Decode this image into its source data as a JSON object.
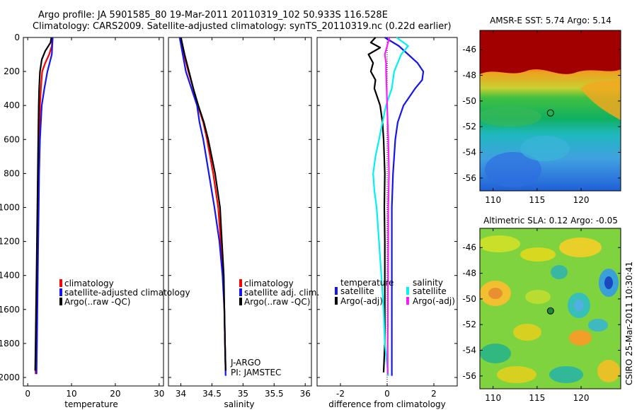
{
  "header": {
    "line1": "Argo profile: JA 5901585_80 19-Mar-2011 20110319_102 50.933S 116.528E",
    "line2": "Climatology: CARS2009. Satellite-adjusted climatology: synTS_20110319.nc (0.22d earlier)"
  },
  "side_label": "CSIRO 25-Mar-2011 10:30:41",
  "colors": {
    "red": "#ff0000",
    "blue": "#1515f0",
    "black": "#000000",
    "cyan": "#00f2f2",
    "magenta": "#ff19ff"
  },
  "chart_data": [
    {
      "id": "temperature",
      "type": "line",
      "xlabel": "temperature",
      "ylabel": "",
      "xlim": [
        -1,
        31
      ],
      "ylim": [
        0,
        2050
      ],
      "y_reversed": true,
      "xticks": [
        0,
        10,
        20,
        30
      ],
      "xtick_labels": [
        "0",
        "10",
        "20",
        "30"
      ],
      "yticks": [
        0,
        200,
        400,
        600,
        800,
        1000,
        1200,
        1400,
        1600,
        1800,
        2000
      ],
      "ytick_labels": [
        "0",
        "200",
        "400",
        "600",
        "800",
        "1000",
        "1200",
        "1400",
        "1600",
        "1800",
        "2000"
      ],
      "legend": [
        "climatology",
        "satellite-adjusted climatology",
        "Argo(..raw -QC)"
      ],
      "series": [
        {
          "name": "climatology",
          "color": "red",
          "depth": [
            0,
            50,
            100,
            150,
            200,
            300,
            400,
            600,
            800,
            1000,
            1200,
            1400,
            1600,
            1800,
            1980
          ],
          "values": [
            5.6,
            5.5,
            4.9,
            4.0,
            3.3,
            3.0,
            2.8,
            2.6,
            2.4,
            2.3,
            2.2,
            2.1,
            2.0,
            1.9,
            1.8
          ]
        },
        {
          "name": "satellite-adjusted climatology",
          "color": "blue",
          "depth": [
            0,
            50,
            100,
            150,
            200,
            300,
            400,
            600,
            800,
            1000,
            1200,
            1400,
            1600,
            1800,
            1980
          ],
          "values": [
            5.7,
            5.6,
            5.5,
            5.0,
            4.5,
            3.8,
            3.2,
            2.8,
            2.6,
            2.5,
            2.4,
            2.3,
            2.2,
            2.1,
            2.0
          ]
        },
        {
          "name": "Argo(..raw -QC)",
          "color": "black",
          "depth": [
            0,
            30,
            80,
            130,
            200,
            300,
            400,
            600,
            800,
            1000,
            1200,
            1400,
            1600,
            1800,
            1960
          ],
          "values": [
            5.4,
            5.2,
            4.0,
            3.2,
            2.8,
            2.6,
            2.5,
            2.4,
            2.3,
            2.2,
            2.1,
            2.0,
            1.9,
            1.8,
            1.7
          ]
        }
      ]
    },
    {
      "id": "salinity",
      "type": "line",
      "xlabel": "salinity",
      "ylabel": "",
      "xlim": [
        33.8,
        36.1
      ],
      "ylim": [
        0,
        2050
      ],
      "y_reversed": true,
      "xticks": [
        34,
        34.5,
        35,
        35.5,
        36
      ],
      "xtick_labels": [
        "34",
        "34.5",
        "35",
        "35.5",
        "36"
      ],
      "legend": [
        "climatology",
        "satellite adj. clim.",
        "Argo(..raw -QC)"
      ],
      "annotations": [
        "J-ARGO",
        "PI: JAMSTEC"
      ],
      "series": [
        {
          "name": "climatology",
          "color": "red",
          "depth": [
            0,
            100,
            200,
            300,
            400,
            500,
            600,
            800,
            1000,
            1200,
            1400,
            1600,
            1800,
            1960
          ],
          "values": [
            34.0,
            34.05,
            34.12,
            34.2,
            34.27,
            34.36,
            34.42,
            34.52,
            34.6,
            34.64,
            34.68,
            34.7,
            34.71,
            34.72
          ]
        },
        {
          "name": "satellite adj. clim.",
          "color": "blue",
          "depth": [
            0,
            100,
            200,
            300,
            400,
            500,
            600,
            800,
            1000,
            1200,
            1400,
            1600,
            1800,
            1990
          ],
          "values": [
            33.98,
            34.03,
            34.08,
            34.17,
            34.26,
            34.3,
            34.36,
            34.45,
            34.54,
            34.62,
            34.67,
            34.7,
            34.71,
            34.72
          ]
        },
        {
          "name": "Argo(..raw -QC)",
          "color": "black",
          "depth": [
            0,
            100,
            200,
            300,
            400,
            500,
            600,
            800,
            1000,
            1200,
            1400,
            1600,
            1800,
            1960
          ],
          "values": [
            34.0,
            34.06,
            34.13,
            34.2,
            34.28,
            34.37,
            34.44,
            34.55,
            34.63,
            34.66,
            34.69,
            34.7,
            34.71,
            34.72
          ]
        }
      ]
    },
    {
      "id": "difference",
      "type": "line",
      "xlabel": "difference from climatology",
      "ylabel": "",
      "xlim": [
        -3,
        3
      ],
      "ylim": [
        0,
        2050
      ],
      "y_reversed": true,
      "xticks": [
        -2,
        0,
        2
      ],
      "xtick_labels": [
        "-2",
        "0",
        "2"
      ],
      "legend_titles": [
        "temperature",
        "salinity"
      ],
      "legend_left": [
        "satellite",
        "Argo(-adj)"
      ],
      "legend_right": [
        "satellite",
        "Argo(-adj)"
      ],
      "series": [
        {
          "name": "temperature satellite",
          "color": "blue",
          "depth": [
            0,
            50,
            100,
            150,
            200,
            250,
            300,
            400,
            500,
            600,
            800,
            1000,
            1200,
            1400,
            1600,
            1800,
            1990
          ],
          "values": [
            -0.1,
            0.5,
            0.9,
            1.3,
            1.55,
            1.5,
            1.2,
            0.7,
            0.45,
            0.35,
            0.25,
            0.2,
            0.2,
            0.2,
            0.2,
            0.2,
            0.2
          ]
        },
        {
          "name": "temperature Argo(-adj)",
          "color": "black",
          "depth": [
            0,
            30,
            60,
            100,
            150,
            200,
            250,
            300,
            400,
            500,
            600,
            800,
            1000,
            1200,
            1400,
            1600,
            1800,
            1970
          ],
          "values": [
            -0.5,
            -0.7,
            -0.3,
            -0.8,
            -0.6,
            -0.7,
            -0.5,
            -0.55,
            -0.3,
            -0.2,
            -0.15,
            -0.1,
            -0.12,
            -0.1,
            -0.1,
            -0.1,
            -0.1,
            -0.15
          ]
        },
        {
          "name": "salinity satellite",
          "color": "cyan",
          "depth": [
            0,
            50,
            100,
            150,
            200,
            300,
            400,
            500,
            600,
            700,
            800,
            900,
            1000,
            1200,
            1400,
            1600,
            1800,
            1990
          ],
          "values": [
            0.4,
            0.9,
            0.6,
            0.45,
            0.3,
            0.2,
            -0.05,
            -0.2,
            -0.35,
            -0.5,
            -0.6,
            -0.55,
            -0.45,
            -0.35,
            -0.25,
            -0.15,
            -0.1,
            0.05
          ]
        },
        {
          "name": "salinity Argo(-adj)",
          "color": "magenta",
          "depth": [
            0,
            50,
            100,
            150,
            200,
            300,
            400,
            500,
            600,
            800,
            1000,
            1200,
            1400,
            1600,
            1800,
            1980
          ],
          "values": [
            0.1,
            0.0,
            -0.1,
            -0.05,
            -0.05,
            -0.02,
            0.0,
            0.02,
            0.05,
            0.08,
            0.05,
            0.05,
            0.04,
            0.03,
            0.02,
            0.02
          ]
        }
      ]
    },
    {
      "id": "sst_map",
      "type": "heatmap",
      "title": "AMSR-E SST: 5.74 Argo: 5.14",
      "xlim": [
        108.5,
        124.5
      ],
      "ylim": [
        -57,
        -44.5
      ],
      "xticks": [
        110,
        115,
        120
      ],
      "xtick_labels": [
        "110",
        "115",
        "120"
      ],
      "yticks": [
        -46,
        -48,
        -50,
        -52,
        -54,
        -56
      ],
      "ytick_labels": [
        "-46",
        "-48",
        "-50",
        "-52",
        "-54",
        "-56"
      ],
      "float_position": {
        "lon": 116.528,
        "lat": -50.933
      }
    },
    {
      "id": "sla_map",
      "type": "heatmap",
      "title": "Altimetric SLA: 0.12 Argo: -0.05",
      "xlim": [
        108.5,
        124.5
      ],
      "ylim": [
        -57,
        -44.5
      ],
      "xticks": [
        110,
        115,
        120
      ],
      "xtick_labels": [
        "110",
        "115",
        "120"
      ],
      "yticks": [
        -46,
        -48,
        -50,
        -52,
        -54,
        -56
      ],
      "ytick_labels": [
        "-46",
        "-48",
        "-50",
        "-52",
        "-54",
        "-56"
      ],
      "float_position": {
        "lon": 116.528,
        "lat": -50.933
      }
    }
  ]
}
